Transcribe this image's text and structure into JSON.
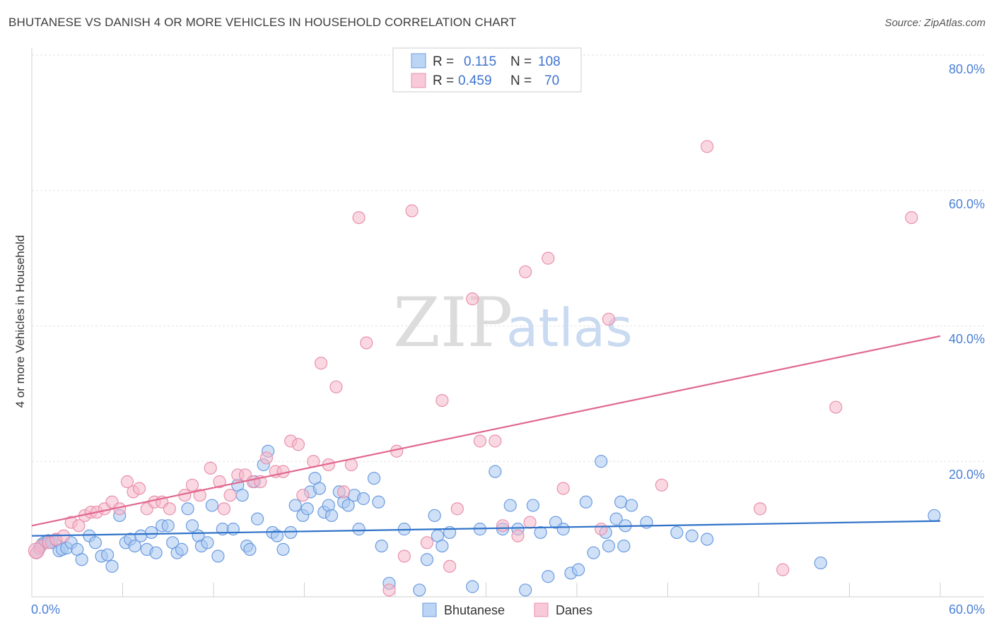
{
  "title": "BHUTANESE VS DANISH 4 OR MORE VEHICLES IN HOUSEHOLD CORRELATION CHART",
  "source": "Source: ZipAtlas.com",
  "watermark": {
    "zip": "ZIP",
    "atlas": "atlas"
  },
  "colors": {
    "blue_fill": "#a9c8f0",
    "blue_stroke": "#6a9be0",
    "blue_line": "#2f72c8",
    "pink_fill": "#f6b8cb",
    "pink_stroke": "#e890ad",
    "pink_line": "#e0688f",
    "tick_text": "#4a7fd6",
    "grid": "#e2e2e2"
  },
  "legend": {
    "r_label": "R =",
    "n_label": "N =",
    "series": [
      {
        "name": "Bhutanese",
        "r": "0.115",
        "n": "108"
      },
      {
        "name": "Danes",
        "r": "0.459",
        "n": "70"
      }
    ]
  },
  "chart_data": {
    "type": "scatter",
    "title": "BHUTANESE VS DANISH 4 OR MORE VEHICLES IN HOUSEHOLD CORRELATION CHART",
    "xlabel": "",
    "ylabel": "4 or more Vehicles in Household",
    "xlim": [
      0,
      60
    ],
    "ylim": [
      0,
      80
    ],
    "x_tick_labels": [
      "0.0%",
      "60.0%"
    ],
    "y_tick_labels": [
      "20.0%",
      "40.0%",
      "60.0%",
      "80.0%"
    ],
    "y_ticks": [
      20,
      40,
      60,
      80
    ],
    "x_minor_ticks": [
      6,
      12,
      18,
      24,
      30,
      36,
      42,
      48,
      54,
      60
    ],
    "grid": true,
    "legend_position": "top-center",
    "series": [
      {
        "name": "Bhutanese",
        "trend": {
          "x": [
            0,
            60
          ],
          "y": [
            9.0,
            11.2
          ]
        },
        "points": [
          [
            0.3,
            6.5
          ],
          [
            0.5,
            7.2
          ],
          [
            0.7,
            7.8
          ],
          [
            0.9,
            8.1
          ],
          [
            1.1,
            8.3
          ],
          [
            1.3,
            8.0
          ],
          [
            1.6,
            8.4
          ],
          [
            1.8,
            6.8
          ],
          [
            2.0,
            7.0
          ],
          [
            2.3,
            7.2
          ],
          [
            2.6,
            8.0
          ],
          [
            3.0,
            7.0
          ],
          [
            3.3,
            5.5
          ],
          [
            3.8,
            9.0
          ],
          [
            4.2,
            8.0
          ],
          [
            4.6,
            6.0
          ],
          [
            5.0,
            6.2
          ],
          [
            5.3,
            4.5
          ],
          [
            5.8,
            12.0
          ],
          [
            6.2,
            8.0
          ],
          [
            6.5,
            8.5
          ],
          [
            6.8,
            7.5
          ],
          [
            7.2,
            9.0
          ],
          [
            7.6,
            7.0
          ],
          [
            7.9,
            9.5
          ],
          [
            8.2,
            6.5
          ],
          [
            8.6,
            10.5
          ],
          [
            9.0,
            10.5
          ],
          [
            9.3,
            8.0
          ],
          [
            9.6,
            6.5
          ],
          [
            9.9,
            7.0
          ],
          [
            10.3,
            13.0
          ],
          [
            10.6,
            10.5
          ],
          [
            11.0,
            9.0
          ],
          [
            11.2,
            7.5
          ],
          [
            11.6,
            8.0
          ],
          [
            11.9,
            13.5
          ],
          [
            12.3,
            6.0
          ],
          [
            12.6,
            10.0
          ],
          [
            13.3,
            10.0
          ],
          [
            13.6,
            16.5
          ],
          [
            13.9,
            15.0
          ],
          [
            14.2,
            7.5
          ],
          [
            14.4,
            7.0
          ],
          [
            14.7,
            17.0
          ],
          [
            14.9,
            11.5
          ],
          [
            15.3,
            19.5
          ],
          [
            15.6,
            21.5
          ],
          [
            15.9,
            9.5
          ],
          [
            16.2,
            9.0
          ],
          [
            16.6,
            7.0
          ],
          [
            17.1,
            9.5
          ],
          [
            17.4,
            13.5
          ],
          [
            17.9,
            12.0
          ],
          [
            18.2,
            13.0
          ],
          [
            18.4,
            15.5
          ],
          [
            18.7,
            17.5
          ],
          [
            19.0,
            16.0
          ],
          [
            19.3,
            12.5
          ],
          [
            19.6,
            13.5
          ],
          [
            19.8,
            12.0
          ],
          [
            20.3,
            15.5
          ],
          [
            20.6,
            14.0
          ],
          [
            20.9,
            13.5
          ],
          [
            21.3,
            15.0
          ],
          [
            21.6,
            10.0
          ],
          [
            21.9,
            14.5
          ],
          [
            22.6,
            17.5
          ],
          [
            22.9,
            14.0
          ],
          [
            23.1,
            7.5
          ],
          [
            23.6,
            2.0
          ],
          [
            24.6,
            10.0
          ],
          [
            25.6,
            1.0
          ],
          [
            26.1,
            5.5
          ],
          [
            26.6,
            12.0
          ],
          [
            26.8,
            9.0
          ],
          [
            27.1,
            7.5
          ],
          [
            27.6,
            9.5
          ],
          [
            29.1,
            1.5
          ],
          [
            29.6,
            10.0
          ],
          [
            30.6,
            18.5
          ],
          [
            31.1,
            10.0
          ],
          [
            31.6,
            13.5
          ],
          [
            32.1,
            10.0
          ],
          [
            32.6,
            1.0
          ],
          [
            33.1,
            13.5
          ],
          [
            33.6,
            9.5
          ],
          [
            34.1,
            3.0
          ],
          [
            34.6,
            11.0
          ],
          [
            35.1,
            10.0
          ],
          [
            35.6,
            3.5
          ],
          [
            36.1,
            4.0
          ],
          [
            36.6,
            14.0
          ],
          [
            37.1,
            6.5
          ],
          [
            37.6,
            20.0
          ],
          [
            37.9,
            9.5
          ],
          [
            38.1,
            7.5
          ],
          [
            38.6,
            11.5
          ],
          [
            38.9,
            14.0
          ],
          [
            39.1,
            7.5
          ],
          [
            39.6,
            13.5
          ],
          [
            40.6,
            11.0
          ],
          [
            42.6,
            9.5
          ],
          [
            43.6,
            9.0
          ],
          [
            44.6,
            8.5
          ],
          [
            52.1,
            5.0
          ],
          [
            59.6,
            12.0
          ],
          [
            39.2,
            10.5
          ]
        ]
      },
      {
        "name": "Danes",
        "trend": {
          "x": [
            0,
            60
          ],
          "y": [
            10.5,
            38.5
          ]
        },
        "points": [
          [
            0.3,
            6.5
          ],
          [
            0.6,
            7.5
          ],
          [
            1.1,
            8.0
          ],
          [
            1.6,
            8.5
          ],
          [
            2.1,
            9.0
          ],
          [
            2.6,
            11.0
          ],
          [
            3.1,
            10.5
          ],
          [
            3.5,
            12.0
          ],
          [
            3.9,
            12.5
          ],
          [
            4.3,
            12.5
          ],
          [
            4.8,
            13.0
          ],
          [
            5.3,
            14.0
          ],
          [
            5.8,
            13.0
          ],
          [
            6.3,
            17.0
          ],
          [
            6.7,
            15.5
          ],
          [
            7.1,
            16.0
          ],
          [
            7.6,
            13.0
          ],
          [
            8.1,
            14.0
          ],
          [
            8.6,
            14.0
          ],
          [
            9.1,
            13.0
          ],
          [
            10.1,
            15.0
          ],
          [
            10.6,
            16.5
          ],
          [
            11.1,
            15.0
          ],
          [
            11.8,
            19.0
          ],
          [
            12.4,
            17.0
          ],
          [
            12.7,
            13.0
          ],
          [
            13.1,
            15.0
          ],
          [
            13.6,
            18.0
          ],
          [
            14.1,
            18.0
          ],
          [
            14.6,
            17.0
          ],
          [
            15.1,
            17.0
          ],
          [
            15.5,
            20.5
          ],
          [
            16.1,
            18.5
          ],
          [
            16.6,
            18.5
          ],
          [
            17.1,
            23.0
          ],
          [
            17.6,
            22.5
          ],
          [
            17.9,
            15.0
          ],
          [
            18.6,
            20.0
          ],
          [
            19.1,
            34.5
          ],
          [
            19.6,
            19.5
          ],
          [
            20.1,
            31.0
          ],
          [
            20.6,
            15.5
          ],
          [
            21.1,
            19.5
          ],
          [
            21.6,
            56.0
          ],
          [
            22.1,
            37.5
          ],
          [
            23.6,
            1.0
          ],
          [
            24.1,
            21.5
          ],
          [
            24.6,
            6.0
          ],
          [
            25.1,
            57.0
          ],
          [
            26.1,
            8.0
          ],
          [
            27.1,
            29.0
          ],
          [
            27.6,
            4.5
          ],
          [
            28.1,
            13.0
          ],
          [
            29.1,
            44.0
          ],
          [
            29.6,
            23.0
          ],
          [
            30.6,
            23.0
          ],
          [
            31.1,
            10.5
          ],
          [
            32.1,
            9.0
          ],
          [
            32.6,
            48.0
          ],
          [
            34.1,
            50.0
          ],
          [
            35.1,
            16.0
          ],
          [
            37.6,
            10.0
          ],
          [
            38.1,
            41.0
          ],
          [
            41.6,
            16.5
          ],
          [
            44.6,
            66.5
          ],
          [
            48.1,
            13.0
          ],
          [
            49.6,
            4.0
          ],
          [
            53.1,
            28.0
          ],
          [
            58.1,
            56.0
          ],
          [
            32.9,
            11.0
          ]
        ]
      }
    ]
  }
}
